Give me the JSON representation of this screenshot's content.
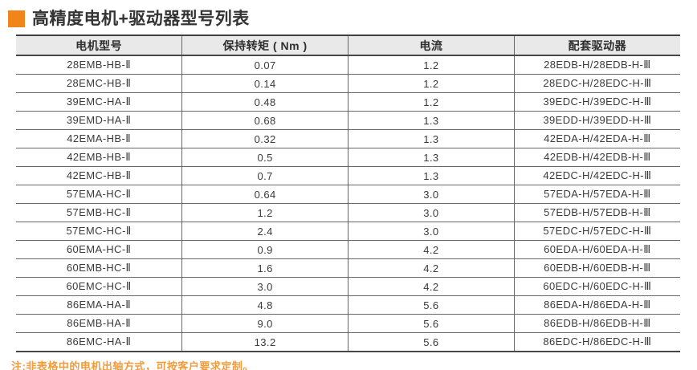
{
  "page": {
    "title": "高精度电机+驱动器型号列表",
    "note": "注:非表格中的电机出轴方式，可按客户要求定制。"
  },
  "colors": {
    "accent_orange": "#F08519",
    "note_orange": "#F29B3B",
    "header_bg": "#E9E9E9",
    "border_gray": "#686868",
    "text_dark": "#3A3A3A"
  },
  "table": {
    "columns": [
      "电机型号",
      "保持转矩 ( Nm )",
      "电流",
      "配套驱动器"
    ],
    "rows": [
      {
        "motor": "28EMB-HB-Ⅱ",
        "torque": "0.07",
        "current": "1.2",
        "driver": "28EDB-H/28EDB-H-Ⅲ"
      },
      {
        "motor": "28EMC-HB-Ⅱ",
        "torque": "0.14",
        "current": "1.2",
        "driver": "28EDC-H/28EDC-H-Ⅲ"
      },
      {
        "motor": "39EMC-HA-Ⅱ",
        "torque": "0.48",
        "current": "1.2",
        "driver": "39EDC-H/39EDC-H-Ⅲ"
      },
      {
        "motor": "39EMD-HA-Ⅱ",
        "torque": "0.68",
        "current": "1.3",
        "driver": "39EDD-H/39EDD-H-Ⅲ"
      },
      {
        "motor": "42EMA-HB-Ⅱ",
        "torque": "0.32",
        "current": "1.3",
        "driver": "42EDA-H/42EDA-H-Ⅲ"
      },
      {
        "motor": "42EMB-HB-Ⅱ",
        "torque": "0.5",
        "current": "1.3",
        "driver": "42EDB-H/42EDB-H-Ⅲ"
      },
      {
        "motor": "42EMC-HB-Ⅱ",
        "torque": "0.7",
        "current": "1.3",
        "driver": "42EDC-H/42EDC-H-Ⅲ"
      },
      {
        "motor": "57EMA-HC-Ⅱ",
        "torque": "0.64",
        "current": "3.0",
        "driver": "57EDA-H/57EDA-H-Ⅲ"
      },
      {
        "motor": "57EMB-HC-Ⅱ",
        "torque": "1.2",
        "current": "3.0",
        "driver": "57EDB-H/57EDB-H-Ⅲ"
      },
      {
        "motor": "57EMC-HC-Ⅱ",
        "torque": "2.4",
        "current": "3.0",
        "driver": "57EDC-H/57EDC-H-Ⅲ"
      },
      {
        "motor": "60EMA-HC-Ⅱ",
        "torque": "0.9",
        "current": "4.2",
        "driver": "60EDA-H/60EDA-H-Ⅲ"
      },
      {
        "motor": "60EMB-HC-Ⅱ",
        "torque": "1.6",
        "current": "4.2",
        "driver": "60EDB-H/60EDB-H-Ⅲ"
      },
      {
        "motor": "60EMC-HC-Ⅱ",
        "torque": "3.0",
        "current": "4.2",
        "driver": "60EDC-H/60EDC-H-Ⅲ"
      },
      {
        "motor": "86EMA-HA-Ⅱ",
        "torque": "4.8",
        "current": "5.6",
        "driver": "86EDA-H/86EDA-H-Ⅲ"
      },
      {
        "motor": "86EMB-HA-Ⅱ",
        "torque": "9.0",
        "current": "5.6",
        "driver": "86EDB-H/86EDB-H-Ⅲ"
      },
      {
        "motor": "86EMC-HA-Ⅱ",
        "torque": "13.2",
        "current": "5.6",
        "driver": "86EDC-H/86EDC-H-Ⅲ"
      }
    ]
  }
}
